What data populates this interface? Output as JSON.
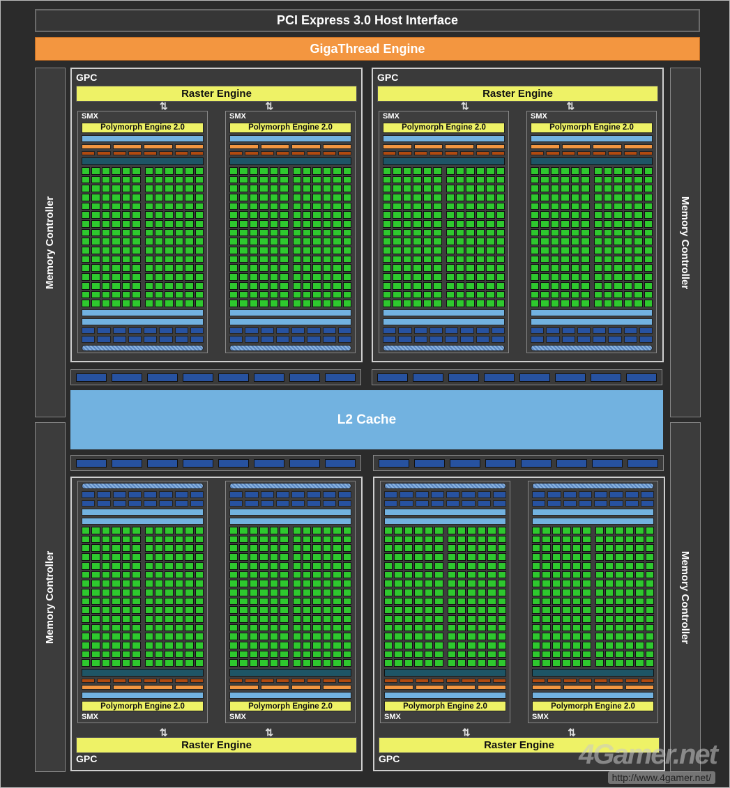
{
  "pcie": "PCI Express 3.0 Host Interface",
  "gigathread": "GigaThread Engine",
  "memory_controllers": [
    {
      "label": "Memory Controller"
    },
    {
      "label": "Memory Controller"
    },
    {
      "label": "Memory Controller"
    },
    {
      "label": "Memory Controller"
    }
  ],
  "l2": "L2 Cache",
  "gpcs": [
    {
      "label": "GPC",
      "raster": "Raster Engine",
      "smx": [
        {
          "label": "SMX",
          "polymorph": "Polymorph Engine 2.0"
        },
        {
          "label": "SMX",
          "polymorph": "Polymorph Engine 2.0"
        }
      ]
    },
    {
      "label": "GPC",
      "raster": "Raster Engine",
      "smx": [
        {
          "label": "SMX",
          "polymorph": "Polymorph Engine 2.0"
        },
        {
          "label": "SMX",
          "polymorph": "Polymorph Engine 2.0"
        }
      ]
    },
    {
      "label": "GPC",
      "raster": "Raster Engine",
      "smx": [
        {
          "label": "SMX",
          "polymorph": "Polymorph Engine 2.0"
        },
        {
          "label": "SMX",
          "polymorph": "Polymorph Engine 2.0"
        }
      ]
    },
    {
      "label": "GPC",
      "raster": "Raster Engine",
      "smx": [
        {
          "label": "SMX",
          "polymorph": "Polymorph Engine 2.0"
        },
        {
          "label": "SMX",
          "polymorph": "Polymorph Engine 2.0"
        }
      ]
    }
  ],
  "watermark": {
    "logo": "4Gamer.net",
    "url": "http://www.4gamer.net/"
  },
  "colors": {
    "gigathread": "#f39640",
    "raster": "#eef266",
    "core": "#2ec82e",
    "l2": "#72b2e0",
    "block_blue": "#2752a0"
  }
}
